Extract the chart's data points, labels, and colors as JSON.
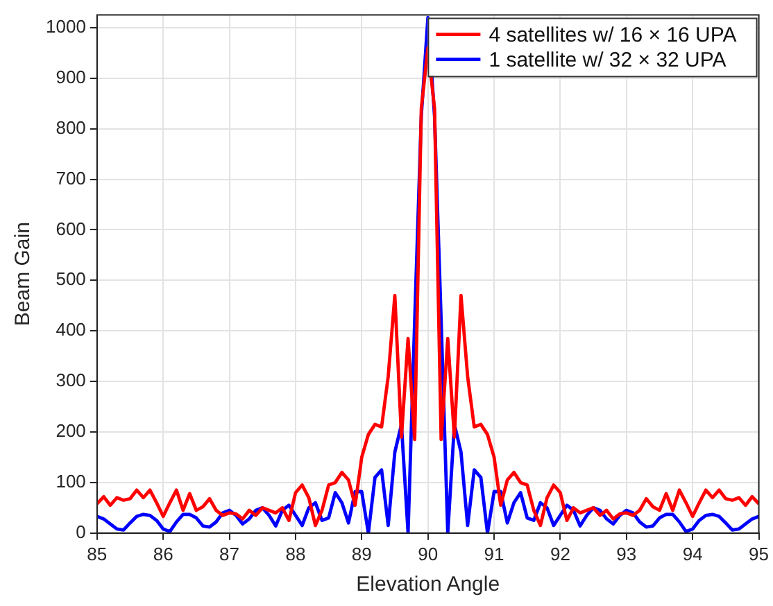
{
  "chart_data": {
    "type": "line",
    "xlabel": "Elevation Angle",
    "ylabel": "Beam Gain",
    "x": [
      85,
      85.1,
      85.2,
      85.3,
      85.4,
      85.5,
      85.6,
      85.7,
      85.8,
      85.9,
      86,
      86.1,
      86.2,
      86.3,
      86.4,
      86.5,
      86.6,
      86.7,
      86.8,
      86.9,
      87,
      87.1,
      87.2,
      87.3,
      87.4,
      87.5,
      87.6,
      87.7,
      87.8,
      87.9,
      88,
      88.1,
      88.2,
      88.3,
      88.4,
      88.5,
      88.6,
      88.7,
      88.8,
      88.9,
      89,
      89.1,
      89.2,
      89.3,
      89.4,
      89.5,
      89.6,
      89.7,
      89.8,
      89.9,
      90,
      90.1,
      90.2,
      90.3,
      90.4,
      90.5,
      90.6,
      90.7,
      90.8,
      90.9,
      91,
      91.1,
      91.2,
      91.3,
      91.4,
      91.5,
      91.6,
      91.7,
      91.8,
      91.9,
      92,
      92.1,
      92.2,
      92.3,
      92.4,
      92.5,
      92.6,
      92.7,
      92.8,
      92.9,
      93,
      93.1,
      93.2,
      93.3,
      93.4,
      93.5,
      93.6,
      93.7,
      93.8,
      93.9,
      94,
      94.1,
      94.2,
      94.3,
      94.4,
      94.5,
      94.6,
      94.7,
      94.8,
      94.9,
      95
    ],
    "series": [
      {
        "name": "4 satellites w/ 16 × 16 UPA",
        "color": "#ff0000",
        "values": [
          58,
          72,
          55,
          70,
          65,
          68,
          85,
          70,
          85,
          60,
          33,
          60,
          85,
          45,
          78,
          45,
          52,
          68,
          45,
          35,
          40,
          38,
          28,
          45,
          35,
          50,
          45,
          40,
          50,
          25,
          80,
          95,
          70,
          15,
          45,
          95,
          100,
          120,
          105,
          55,
          150,
          195,
          215,
          210,
          310,
          470,
          190,
          385,
          185,
          840,
          960,
          840,
          185,
          385,
          190,
          470,
          310,
          210,
          215,
          195,
          150,
          55,
          105,
          120,
          100,
          95,
          45,
          15,
          70,
          95,
          80,
          25,
          50,
          40,
          45,
          50,
          35,
          45,
          28,
          38,
          40,
          35,
          45,
          68,
          52,
          45,
          78,
          45,
          85,
          60,
          33,
          60,
          85,
          70,
          85,
          68,
          65,
          70,
          55,
          72,
          58
        ]
      },
      {
        "name": "1 satellite w/ 32 × 32 UPA",
        "color": "#0000ff",
        "values": [
          33,
          28,
          18,
          8,
          6,
          20,
          33,
          37,
          35,
          25,
          8,
          3,
          22,
          37,
          37,
          30,
          14,
          12,
          22,
          40,
          45,
          35,
          18,
          28,
          45,
          50,
          35,
          14,
          45,
          55,
          35,
          15,
          50,
          60,
          25,
          30,
          80,
          60,
          20,
          82,
          82,
          0,
          110,
          125,
          15,
          160,
          215,
          0,
          420,
          825,
          1020,
          825,
          420,
          0,
          215,
          160,
          15,
          125,
          110,
          0,
          82,
          82,
          20,
          60,
          80,
          30,
          25,
          60,
          50,
          15,
          35,
          55,
          45,
          14,
          35,
          50,
          45,
          28,
          18,
          35,
          45,
          40,
          22,
          12,
          14,
          30,
          37,
          37,
          22,
          3,
          8,
          25,
          35,
          37,
          33,
          20,
          6,
          8,
          18,
          28,
          33
        ]
      }
    ],
    "xlim": [
      85,
      95
    ],
    "xticks": [
      85,
      86,
      87,
      88,
      89,
      90,
      91,
      92,
      93,
      94,
      95
    ],
    "ylim": [
      0,
      1025
    ],
    "yticks": [
      0,
      100,
      200,
      300,
      400,
      500,
      600,
      700,
      800,
      900,
      1000
    ],
    "grid": true,
    "legend": "top right",
    "marker": "none",
    "line_style": "solid"
  }
}
